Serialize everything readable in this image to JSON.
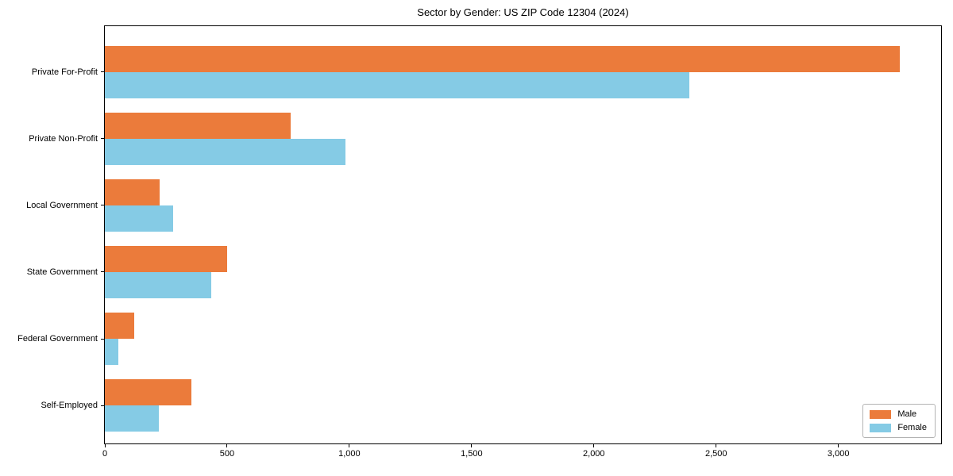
{
  "chart_data": {
    "type": "bar",
    "orientation": "horizontal",
    "title": "Sector by Gender: US ZIP Code 12304 (2024)",
    "categories": [
      "Private For-Profit",
      "Private Non-Profit",
      "Local Government",
      "State Government",
      "Federal Government",
      "Self-Employed"
    ],
    "series": [
      {
        "name": "Male",
        "color": "#EB7B3B",
        "values": [
          3250,
          760,
          225,
          500,
          120,
          355
        ]
      },
      {
        "name": "Female",
        "color": "#85CBE5",
        "values": [
          2390,
          985,
          280,
          435,
          55,
          220
        ]
      }
    ],
    "xlabel": "",
    "ylabel": "",
    "xlim": [
      0,
      3420
    ],
    "xticks": [
      0,
      500,
      1000,
      1500,
      2000,
      2500,
      3000
    ],
    "xtick_labels": [
      "0",
      "500",
      "1,000",
      "1,500",
      "2,000",
      "2,500",
      "3,000"
    ],
    "legend": {
      "position": "lower right",
      "items": [
        "Male",
        "Female"
      ]
    },
    "grid": false,
    "background": "#ffffff",
    "axis_color": "#000000"
  }
}
